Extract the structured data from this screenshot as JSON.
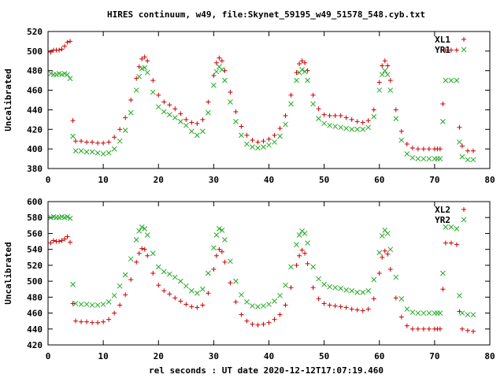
{
  "title": "HIRES continuum, w49, file:Skynet_59195_w49_51578_548.cyb.txt",
  "xlabel": "rel seconds : UT date 2020-12-12T17:07:19.460",
  "colors": {
    "series_a": "#cc0000",
    "series_b": "#22aa22"
  },
  "chart_data": [
    {
      "type": "scatter",
      "ylabel": "Uncalibrated",
      "xlim": [
        0,
        80
      ],
      "ylim": [
        380,
        520
      ],
      "xticks": [
        0,
        10,
        20,
        30,
        40,
        50,
        60,
        70,
        80
      ],
      "yticks": [
        380,
        400,
        420,
        440,
        460,
        480,
        500,
        520
      ],
      "legend": "top-right",
      "series": [
        {
          "name": "XL1",
          "marker": "+",
          "x": [
            0.5,
            1.0,
            1.5,
            2.0,
            2.5,
            3.0,
            3.5,
            4.0,
            4.5,
            5.0,
            6.0,
            7.0,
            8.0,
            9.0,
            10.0,
            11.0,
            12.0,
            13.0,
            14.0,
            15.0,
            16.0,
            16.5,
            17.0,
            17.5,
            18.0,
            19.0,
            20.0,
            21.0,
            22.0,
            23.0,
            24.0,
            25.0,
            26.0,
            27.0,
            28.0,
            29.0,
            30.0,
            30.5,
            31.0,
            31.5,
            32.0,
            33.0,
            34.0,
            35.0,
            36.0,
            37.0,
            38.0,
            39.0,
            40.0,
            41.0,
            42.0,
            43.0,
            44.0,
            45.0,
            45.5,
            46.0,
            46.5,
            47.0,
            48.0,
            49.0,
            50.0,
            51.0,
            52.0,
            53.0,
            54.0,
            55.0,
            56.0,
            57.0,
            58.0,
            59.0,
            60.0,
            60.5,
            61.0,
            61.5,
            62.0,
            63.0,
            64.0,
            65.0,
            66.0,
            67.0,
            68.0,
            69.0,
            70.0,
            70.5,
            71.0,
            71.5,
            72.0,
            73.0,
            74.0,
            74.5,
            75.0,
            76.0,
            77.0
          ],
          "y": [
            499,
            501,
            501,
            501,
            502,
            505,
            509,
            510,
            429,
            408,
            408,
            407,
            407,
            406,
            406,
            407,
            412,
            420,
            432,
            450,
            472,
            484,
            492,
            494,
            490,
            470,
            455,
            448,
            445,
            441,
            436,
            430,
            427,
            426,
            430,
            448,
            475,
            488,
            493,
            490,
            480,
            458,
            438,
            423,
            414,
            409,
            407,
            408,
            410,
            414,
            421,
            434,
            455,
            478,
            487,
            490,
            488,
            480,
            455,
            441,
            435,
            434,
            434,
            434,
            432,
            430,
            428,
            427,
            429,
            440,
            468,
            485,
            490,
            485,
            470,
            440,
            418,
            405,
            401,
            400,
            400,
            400,
            400,
            400,
            400,
            446,
            501,
            501,
            501,
            422,
            403,
            398,
            398
          ]
        },
        {
          "name": "YR1",
          "marker": "x",
          "x": [
            0.5,
            1.0,
            1.5,
            2.0,
            2.5,
            3.0,
            3.5,
            4.0,
            4.5,
            5.0,
            6.0,
            7.0,
            8.0,
            9.0,
            10.0,
            11.0,
            12.0,
            13.0,
            14.0,
            15.0,
            16.0,
            16.5,
            17.0,
            17.5,
            18.0,
            19.0,
            20.0,
            21.0,
            22.0,
            23.0,
            24.0,
            25.0,
            26.0,
            27.0,
            28.0,
            29.0,
            30.0,
            30.5,
            31.0,
            31.5,
            32.0,
            33.0,
            34.0,
            35.0,
            36.0,
            37.0,
            38.0,
            39.0,
            40.0,
            41.0,
            42.0,
            43.0,
            44.0,
            45.0,
            45.5,
            46.0,
            46.5,
            47.0,
            48.0,
            49.0,
            50.0,
            51.0,
            52.0,
            53.0,
            54.0,
            55.0,
            56.0,
            57.0,
            58.0,
            59.0,
            60.0,
            60.5,
            61.0,
            61.5,
            62.0,
            63.0,
            64.0,
            65.0,
            66.0,
            67.0,
            68.0,
            69.0,
            70.0,
            70.5,
            71.0,
            71.5,
            72.0,
            73.0,
            74.0,
            74.5,
            75.0,
            76.0,
            77.0
          ],
          "y": [
            477,
            476,
            476,
            477,
            476,
            477,
            476,
            472,
            413,
            398,
            398,
            397,
            397,
            396,
            395,
            396,
            400,
            408,
            419,
            437,
            460,
            474,
            482,
            483,
            478,
            458,
            443,
            438,
            435,
            432,
            428,
            424,
            418,
            414,
            418,
            437,
            465,
            479,
            484,
            481,
            470,
            448,
            428,
            414,
            405,
            402,
            401,
            402,
            404,
            407,
            413,
            425,
            446,
            470,
            478,
            481,
            479,
            470,
            446,
            431,
            426,
            424,
            423,
            422,
            421,
            420,
            420,
            420,
            422,
            433,
            460,
            476,
            480,
            476,
            460,
            431,
            409,
            395,
            391,
            390,
            390,
            390,
            390,
            390,
            390,
            428,
            470,
            470,
            470,
            407,
            392,
            389,
            389
          ]
        }
      ]
    },
    {
      "type": "scatter",
      "ylabel": "Uncalibrated",
      "xlim": [
        0,
        80
      ],
      "ylim": [
        420,
        600
      ],
      "xticks": [
        0,
        10,
        20,
        30,
        40,
        50,
        60,
        70,
        80
      ],
      "yticks": [
        420,
        440,
        460,
        480,
        500,
        520,
        540,
        560,
        580,
        600
      ],
      "legend": "top-right",
      "series": [
        {
          "name": "XL2",
          "marker": "+",
          "x": [
            0.5,
            1.0,
            1.5,
            2.0,
            2.5,
            3.0,
            3.5,
            4.0,
            4.5,
            5.0,
            6.0,
            7.0,
            8.0,
            9.0,
            10.0,
            11.0,
            12.0,
            13.0,
            14.0,
            15.0,
            16.0,
            16.5,
            17.0,
            17.5,
            18.0,
            19.0,
            20.0,
            21.0,
            22.0,
            23.0,
            24.0,
            25.0,
            26.0,
            27.0,
            28.0,
            29.0,
            30.0,
            30.5,
            31.0,
            31.5,
            32.0,
            33.0,
            34.0,
            35.0,
            36.0,
            37.0,
            38.0,
            39.0,
            40.0,
            41.0,
            42.0,
            43.0,
            44.0,
            45.0,
            45.5,
            46.0,
            46.5,
            47.0,
            48.0,
            49.0,
            50.0,
            51.0,
            52.0,
            53.0,
            54.0,
            55.0,
            56.0,
            57.0,
            58.0,
            59.0,
            60.0,
            60.5,
            61.0,
            61.5,
            62.0,
            63.0,
            64.0,
            65.0,
            66.0,
            67.0,
            68.0,
            69.0,
            70.0,
            70.5,
            71.0,
            71.5,
            72.0,
            73.0,
            74.0,
            74.5,
            75.0,
            76.0,
            77.0
          ],
          "y": [
            548,
            551,
            550,
            550,
            551,
            553,
            556,
            549,
            472,
            450,
            449,
            449,
            448,
            448,
            449,
            452,
            460,
            470,
            483,
            502,
            524,
            535,
            541,
            540,
            532,
            510,
            495,
            488,
            484,
            479,
            475,
            471,
            468,
            467,
            470,
            485,
            515,
            532,
            540,
            537,
            524,
            498,
            474,
            458,
            450,
            446,
            445,
            446,
            448,
            452,
            458,
            470,
            492,
            520,
            532,
            539,
            535,
            522,
            492,
            478,
            472,
            470,
            469,
            468,
            467,
            465,
            464,
            463,
            465,
            478,
            510,
            530,
            538,
            534,
            515,
            479,
            455,
            444,
            440,
            440,
            440,
            440,
            440,
            440,
            440,
            490,
            548,
            548,
            546,
            462,
            440,
            438,
            437
          ]
        },
        {
          "name": "YR2",
          "marker": "x",
          "x": [
            0.5,
            1.0,
            1.5,
            2.0,
            2.5,
            3.0,
            3.5,
            4.0,
            4.5,
            5.0,
            6.0,
            7.0,
            8.0,
            9.0,
            10.0,
            11.0,
            12.0,
            13.0,
            14.0,
            15.0,
            16.0,
            16.5,
            17.0,
            17.5,
            18.0,
            19.0,
            20.0,
            21.0,
            22.0,
            23.0,
            24.0,
            25.0,
            26.0,
            27.0,
            28.0,
            29.0,
            30.0,
            30.5,
            31.0,
            31.5,
            32.0,
            33.0,
            34.0,
            35.0,
            36.0,
            37.0,
            38.0,
            39.0,
            40.0,
            41.0,
            42.0,
            43.0,
            44.0,
            45.0,
            45.5,
            46.0,
            46.5,
            47.0,
            48.0,
            49.0,
            50.0,
            51.0,
            52.0,
            53.0,
            54.0,
            55.0,
            56.0,
            57.0,
            58.0,
            59.0,
            60.0,
            60.5,
            61.0,
            61.5,
            62.0,
            63.0,
            64.0,
            65.0,
            66.0,
            67.0,
            68.0,
            69.0,
            70.0,
            70.5,
            71.0,
            71.5,
            72.0,
            73.0,
            74.0,
            74.5,
            75.0,
            76.0,
            77.0
          ],
          "y": [
            580,
            581,
            580,
            580,
            581,
            580,
            581,
            579,
            496,
            472,
            471,
            471,
            470,
            470,
            471,
            474,
            482,
            494,
            508,
            528,
            552,
            563,
            568,
            566,
            558,
            535,
            518,
            512,
            509,
            505,
            500,
            494,
            488,
            485,
            490,
            510,
            542,
            558,
            566,
            564,
            552,
            525,
            500,
            483,
            474,
            469,
            468,
            469,
            471,
            475,
            482,
            495,
            518,
            546,
            558,
            563,
            560,
            548,
            518,
            503,
            496,
            493,
            492,
            491,
            489,
            488,
            486,
            486,
            488,
            502,
            536,
            557,
            564,
            560,
            540,
            505,
            478,
            465,
            461,
            460,
            460,
            460,
            460,
            460,
            460,
            510,
            568,
            568,
            566,
            482,
            460,
            458,
            458
          ]
        }
      ]
    }
  ]
}
